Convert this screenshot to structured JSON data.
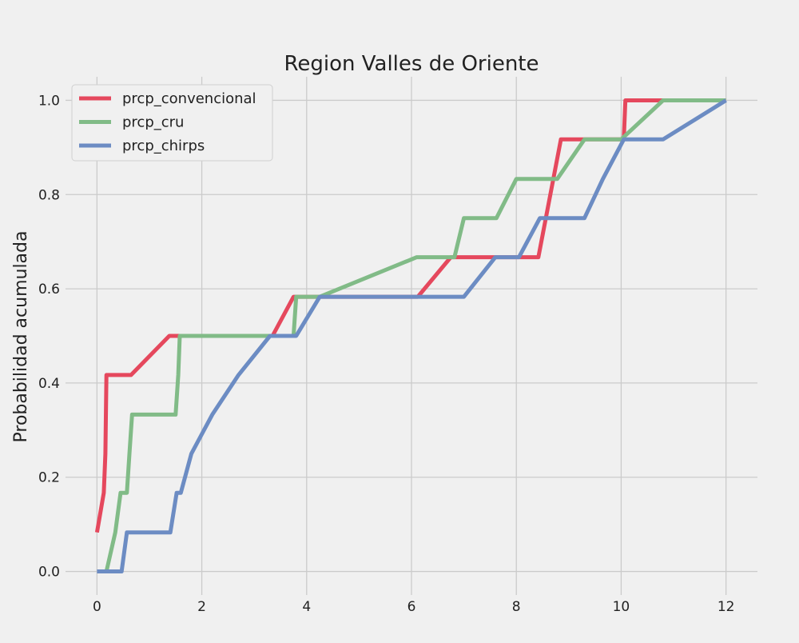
{
  "chart_data": {
    "type": "line",
    "title": "Region Valles de Oriente",
    "xlabel": "",
    "ylabel": "Probabilidad acumulada",
    "xlim": [
      -0.6,
      12.6
    ],
    "ylim": [
      -0.05,
      1.05
    ],
    "xticks": [
      0,
      2,
      4,
      6,
      8,
      10,
      12
    ],
    "yticks": [
      0.0,
      0.2,
      0.4,
      0.6,
      0.8,
      1.0
    ],
    "xtick_labels": [
      "0",
      "2",
      "4",
      "6",
      "8",
      "10",
      "12"
    ],
    "ytick_labels": [
      "0.0",
      "0.2",
      "0.4",
      "0.6",
      "0.8",
      "1.0"
    ],
    "grid": true,
    "legend_position": "upper-left",
    "series": [
      {
        "name": "prcp_convencional",
        "color": "#e5485d",
        "points": [
          [
            0.0,
            0.083
          ],
          [
            0.13,
            0.167
          ],
          [
            0.16,
            0.25
          ],
          [
            0.18,
            0.417
          ],
          [
            0.65,
            0.417
          ],
          [
            1.38,
            0.5
          ],
          [
            3.35,
            0.5
          ],
          [
            3.75,
            0.583
          ],
          [
            6.12,
            0.583
          ],
          [
            6.75,
            0.667
          ],
          [
            7.6,
            0.667
          ],
          [
            8.42,
            0.667
          ],
          [
            8.85,
            0.917
          ],
          [
            9.4,
            0.917
          ],
          [
            10.05,
            0.917
          ],
          [
            10.08,
            1.0
          ],
          [
            12.0,
            1.0
          ]
        ]
      },
      {
        "name": "prcp_cru",
        "color": "#81bb87",
        "points": [
          [
            0.18,
            0.0
          ],
          [
            0.35,
            0.083
          ],
          [
            0.45,
            0.167
          ],
          [
            0.57,
            0.167
          ],
          [
            0.62,
            0.25
          ],
          [
            0.67,
            0.333
          ],
          [
            1.5,
            0.333
          ],
          [
            1.55,
            0.417
          ],
          [
            1.58,
            0.5
          ],
          [
            3.75,
            0.5
          ],
          [
            3.8,
            0.583
          ],
          [
            4.25,
            0.583
          ],
          [
            6.1,
            0.667
          ],
          [
            6.82,
            0.667
          ],
          [
            7.0,
            0.75
          ],
          [
            7.62,
            0.75
          ],
          [
            8.0,
            0.833
          ],
          [
            8.78,
            0.833
          ],
          [
            9.3,
            0.917
          ],
          [
            10.0,
            0.917
          ],
          [
            10.8,
            1.0
          ],
          [
            12.0,
            1.0
          ]
        ]
      },
      {
        "name": "prcp_chirps",
        "color": "#6c8cc3",
        "points": [
          [
            0.0,
            0.0
          ],
          [
            0.47,
            0.0
          ],
          [
            0.57,
            0.083
          ],
          [
            1.4,
            0.083
          ],
          [
            1.52,
            0.167
          ],
          [
            1.6,
            0.167
          ],
          [
            1.8,
            0.25
          ],
          [
            2.2,
            0.333
          ],
          [
            2.7,
            0.417
          ],
          [
            3.3,
            0.5
          ],
          [
            3.8,
            0.5
          ],
          [
            4.25,
            0.583
          ],
          [
            7.0,
            0.583
          ],
          [
            7.6,
            0.667
          ],
          [
            8.05,
            0.667
          ],
          [
            8.45,
            0.75
          ],
          [
            9.3,
            0.75
          ],
          [
            9.65,
            0.833
          ],
          [
            10.05,
            0.917
          ],
          [
            10.8,
            0.917
          ],
          [
            12.0,
            1.0
          ]
        ]
      }
    ]
  }
}
